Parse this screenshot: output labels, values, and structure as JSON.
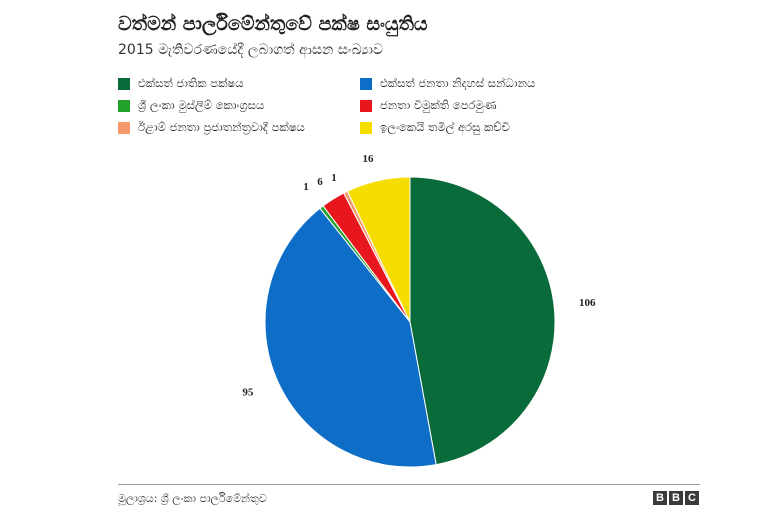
{
  "title": "වත්මන් පාර්ලිමේන්තුවේ පක්ෂ සංයුතිය",
  "subtitle": "2015 මැතිවරණයේදී ලබාගත් ආසන සංඛ්‍යාව",
  "source": "මූලාශ්‍රය: ශ්‍රී ලංකා පාර්ලිමේන්තුව",
  "logo": [
    "B",
    "B",
    "C"
  ],
  "chart_data": {
    "type": "pie",
    "title": "වත්මන් පාර්ලිමේන්තුවේ පක්ෂ සංයුතිය",
    "subtitle": "2015 මැතිවරණයේදී ලබාගත් ආසන සංඛ්‍යාව",
    "legend_position": "top",
    "slices": [
      {
        "label": "එක්සත් ජාතික පක්ෂය",
        "value": 106,
        "color": "#0a6b3a"
      },
      {
        "label": "එක්සත් ජනතා නිදහස් සන්ධානය",
        "value": 95,
        "color": "#0e6ec7"
      },
      {
        "label": "ශ්‍රී ලංකා මුස්ලිම් කොංග්‍රසය",
        "value": 1,
        "color": "#23a12d"
      },
      {
        "label": "ජනතා විමුක්ති පෙරමුණ",
        "value": 6,
        "color": "#e8161d"
      },
      {
        "label": "ඊළාම් ජනතා ප්‍රජාතන්ත්‍රවාදී පක්ෂය",
        "value": 1,
        "color": "#f59a6b"
      },
      {
        "label": "ඉලංකෙයි තමිල් අරසු කච්චි",
        "value": 16,
        "color": "#f6dd00"
      }
    ]
  }
}
